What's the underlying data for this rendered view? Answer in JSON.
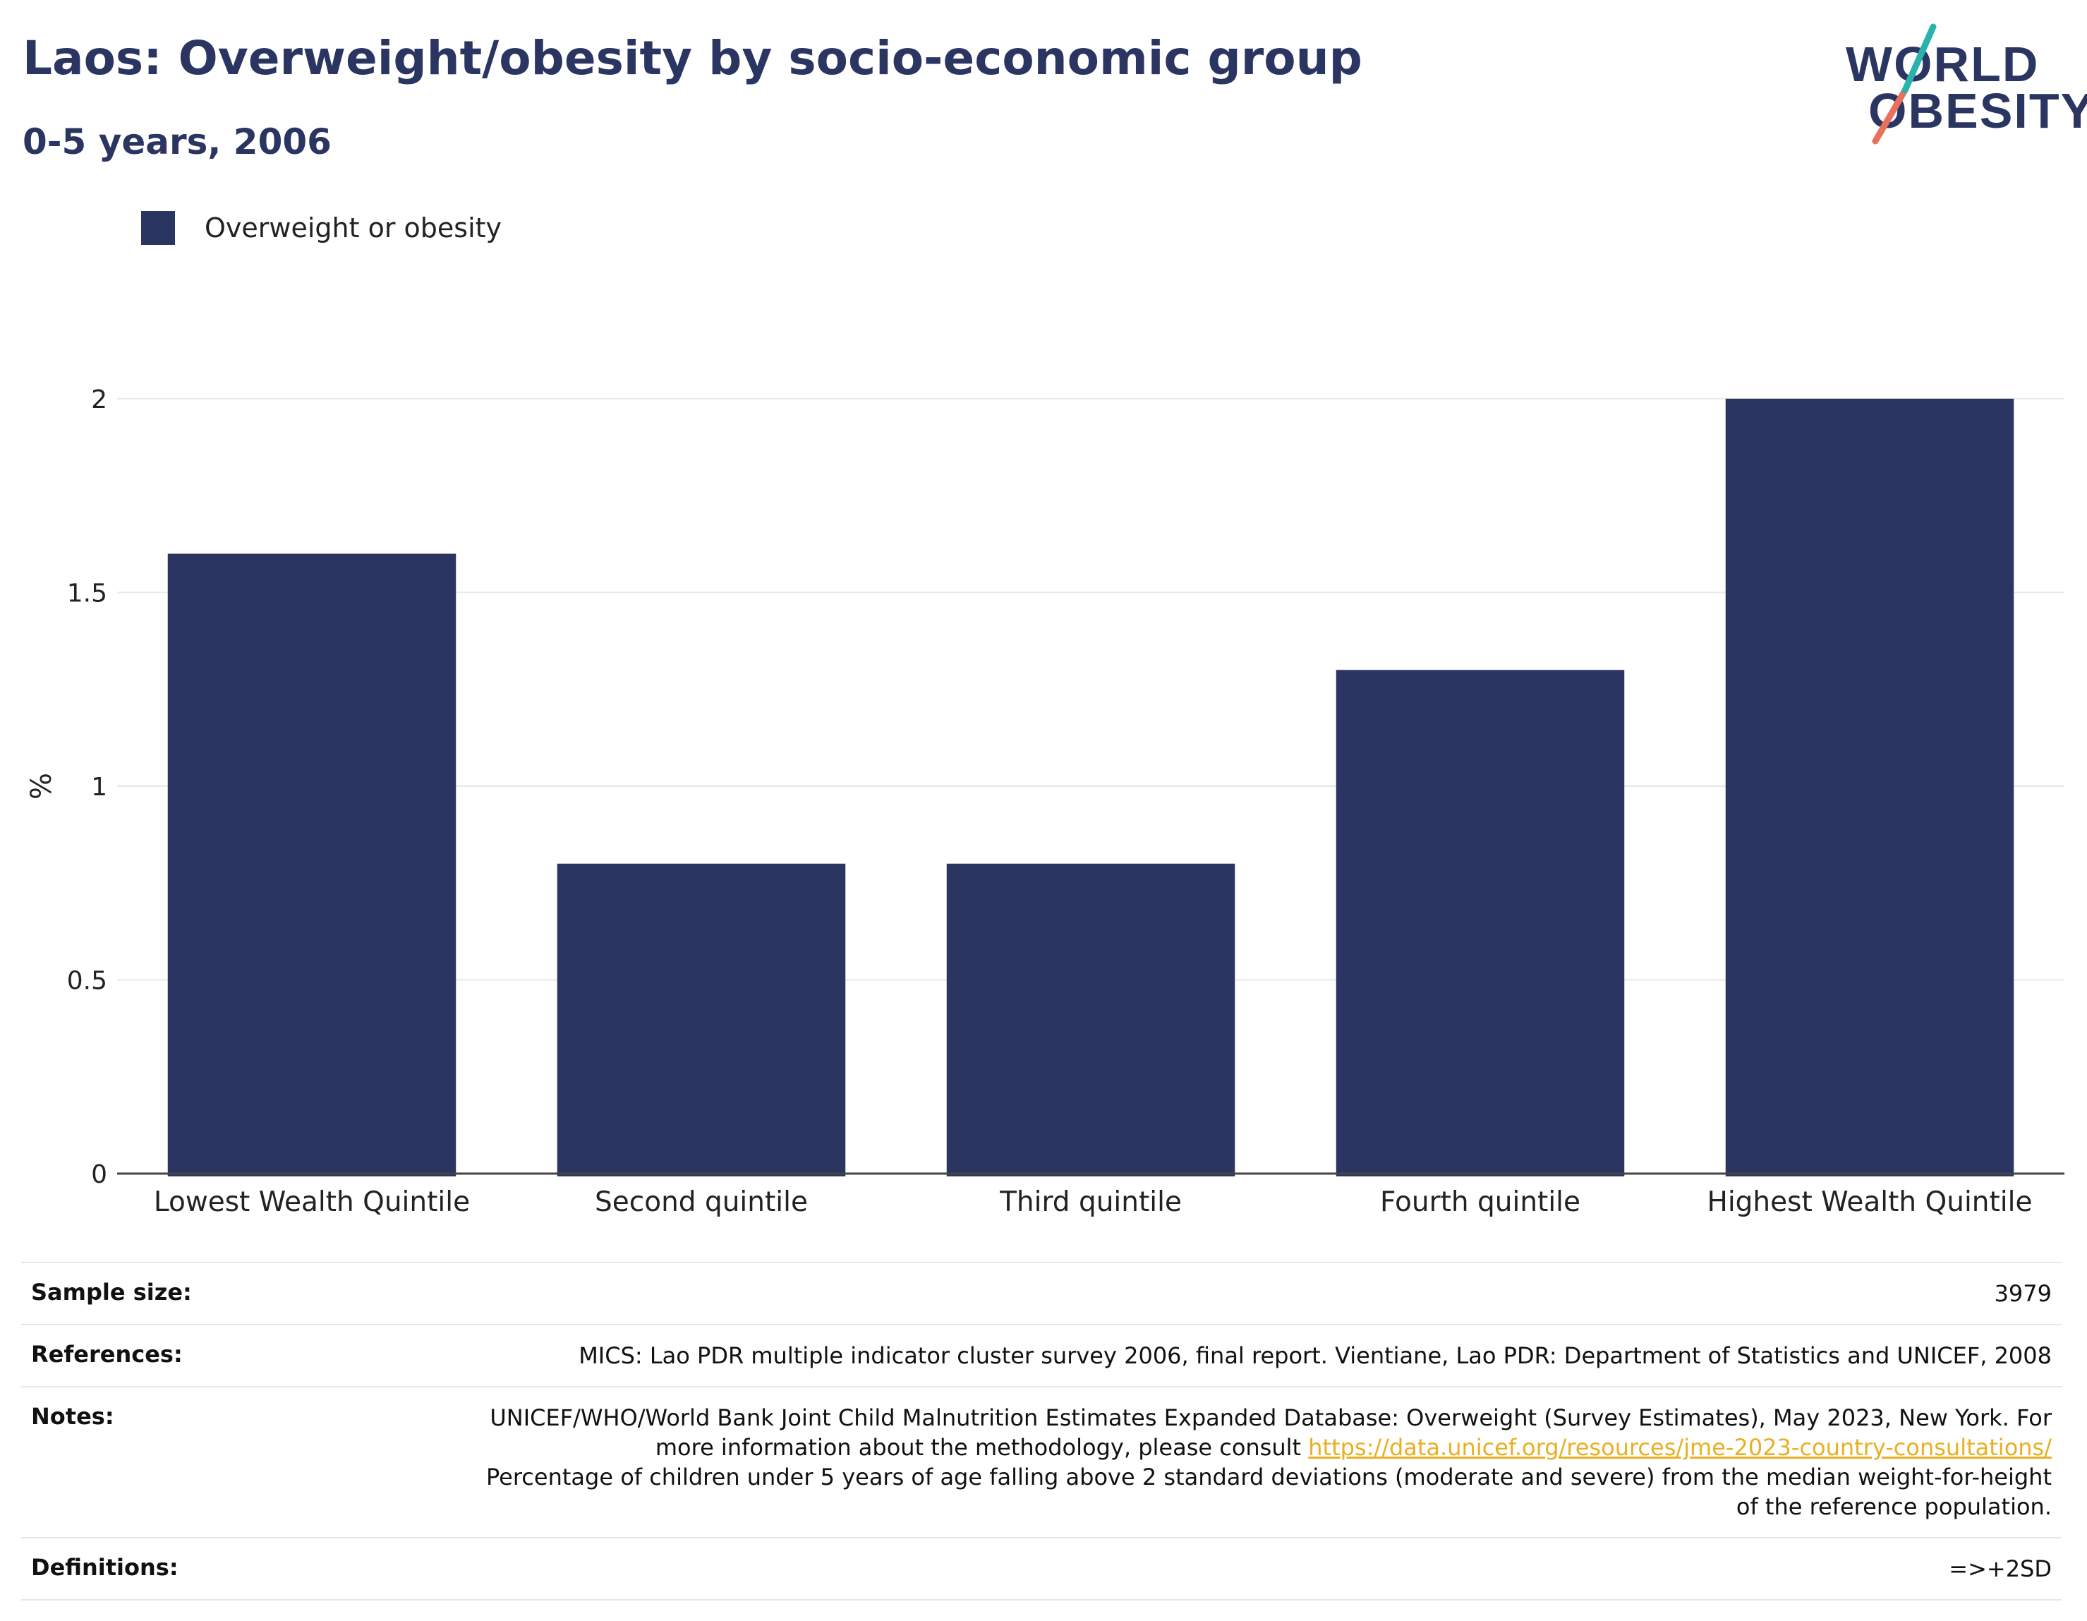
{
  "header": {
    "title": "Laos: Overweight/obesity by socio-economic group",
    "subtitle": "0-5 years, 2006"
  },
  "logo": {
    "line1": "WORLD",
    "line2": "OBESITY"
  },
  "legend": {
    "label": "Overweight or obesity",
    "color": "#2b3561"
  },
  "chart_data": {
    "type": "bar",
    "categories": [
      "Lowest Wealth Quintile",
      "Second quintile",
      "Third quintile",
      "Fourth quintile",
      "Highest Wealth Quintile"
    ],
    "series": [
      {
        "name": "Overweight or obesity",
        "values": [
          1.6,
          0.8,
          0.8,
          1.3,
          2.0
        ],
        "color": "#2b3561"
      }
    ],
    "ylabel": "%",
    "ylim": [
      0,
      2.0
    ],
    "yticks": [
      "0",
      "0.5",
      "1",
      "1.5",
      "2"
    ],
    "grid": true,
    "legend_position": "top-left"
  },
  "info": {
    "sample_size_label": "Sample size:",
    "sample_size": "3979",
    "references_label": "References:",
    "references": "MICS: Lao PDR multiple indicator cluster survey 2006, final report. Vientiane, Lao PDR: Department of Statistics and UNICEF, 2008",
    "notes_label": "Notes:",
    "notes_part1": "UNICEF/WHO/World Bank Joint Child Malnutrition Estimates Expanded Database: Overweight (Survey Estimates), May 2023, New York. For more information about the methodology, please consult ",
    "notes_link": "https://data.unicef.org/resources/jme-2023-country-consultations/",
    "notes_part2": "Percentage of children under 5 years of age falling above 2 standard deviations (moderate and severe) from the median weight-for-height of the reference population.",
    "definitions_label": "Definitions:",
    "definitions": "=>+2SD"
  }
}
